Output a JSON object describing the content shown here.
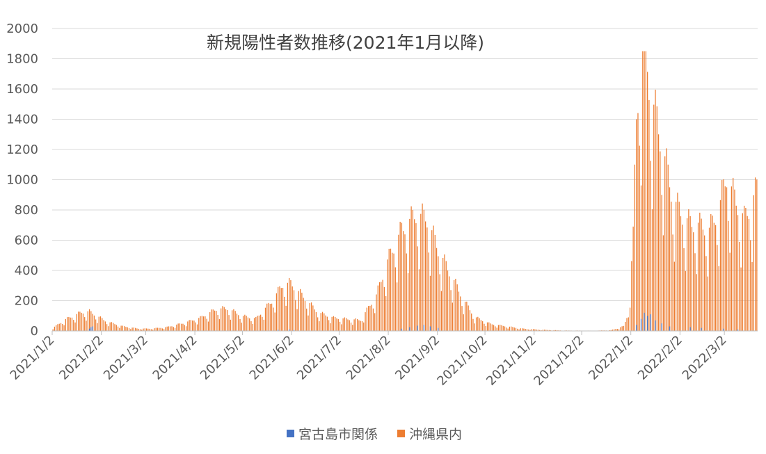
{
  "chart_data": {
    "type": "bar",
    "title": "新規陽性者数推移(2021年1月以降)",
    "xlabel": "",
    "ylabel": "",
    "ylim": [
      0,
      2000
    ],
    "yticks": [
      0,
      200,
      400,
      600,
      800,
      1000,
      1200,
      1400,
      1600,
      1800,
      2000
    ],
    "x_start": "2021/1/2",
    "x_end": "2022/3/22",
    "x_tick_labels": [
      "2021/1/2",
      "2021/2/2",
      "2021/3/2",
      "2021/4/2",
      "2021/5/2",
      "2021/6/2",
      "2021/7/2",
      "2021/8/2",
      "2021/9/2",
      "2021/10/2",
      "2021/11/2",
      "2021/12/2",
      "2022/1/2",
      "2022/2/2",
      "2022/3/2"
    ],
    "grid": true,
    "legend_position": "bottom",
    "series": [
      {
        "name": "宮古島市関係",
        "color": "#4472C4",
        "points": [
          [
            "2021/1/25",
            15
          ],
          [
            "2021/1/26",
            25
          ],
          [
            "2021/1/27",
            30
          ],
          [
            "2021/5/24",
            8
          ],
          [
            "2021/5/31",
            10
          ],
          [
            "2021/6/3",
            6
          ],
          [
            "2021/8/10",
            15
          ],
          [
            "2021/8/15",
            25
          ],
          [
            "2021/8/20",
            35
          ],
          [
            "2021/8/24",
            40
          ],
          [
            "2021/8/28",
            30
          ],
          [
            "2021/9/2",
            20
          ],
          [
            "2022/1/5",
            40
          ],
          [
            "2022/1/8",
            80
          ],
          [
            "2022/1/10",
            120
          ],
          [
            "2022/1/12",
            100
          ],
          [
            "2022/1/14",
            110
          ],
          [
            "2022/1/17",
            70
          ],
          [
            "2022/1/21",
            50
          ],
          [
            "2022/1/26",
            30
          ],
          [
            "2022/2/8",
            25
          ],
          [
            "2022/2/15",
            20
          ],
          [
            "2022/3/1",
            15
          ],
          [
            "2022/3/10",
            10
          ]
        ]
      },
      {
        "name": "沖縄県内",
        "color": "#ED7D31",
        "anchors": [
          [
            "2021/1/2",
            20
          ],
          [
            "2021/1/10",
            75
          ],
          [
            "2021/1/20",
            120
          ],
          [
            "2021/1/25",
            125
          ],
          [
            "2021/2/5",
            60
          ],
          [
            "2021/2/15",
            30
          ],
          [
            "2021/2/25",
            15
          ],
          [
            "2021/3/5",
            15
          ],
          [
            "2021/3/15",
            25
          ],
          [
            "2021/3/25",
            50
          ],
          [
            "2021/4/5",
            85
          ],
          [
            "2021/4/15",
            140
          ],
          [
            "2021/4/22",
            145
          ],
          [
            "2021/5/2",
            95
          ],
          [
            "2021/5/10",
            80
          ],
          [
            "2021/5/20",
            190
          ],
          [
            "2021/5/27",
            300
          ],
          [
            "2021/6/1",
            305
          ],
          [
            "2021/6/8",
            230
          ],
          [
            "2021/6/18",
            120
          ],
          [
            "2021/6/28",
            85
          ],
          [
            "2021/7/8",
            75
          ],
          [
            "2021/7/15",
            70
          ],
          [
            "2021/7/25",
            230
          ],
          [
            "2021/8/1",
            450
          ],
          [
            "2021/8/10",
            650
          ],
          [
            "2021/8/19",
            750
          ],
          [
            "2021/8/26",
            720
          ],
          [
            "2021/9/2",
            520
          ],
          [
            "2021/9/10",
            360
          ],
          [
            "2021/9/18",
            200
          ],
          [
            "2021/9/25",
            90
          ],
          [
            "2021/10/5",
            45
          ],
          [
            "2021/10/15",
            30
          ],
          [
            "2021/10/25",
            15
          ],
          [
            "2021/11/5",
            8
          ],
          [
            "2021/11/20",
            3
          ],
          [
            "2021/12/10",
            2
          ],
          [
            "2021/12/20",
            5
          ],
          [
            "2021/12/28",
            30
          ],
          [
            "2021/12/31",
            120
          ],
          [
            "2022/1/3",
            600
          ],
          [
            "2022/1/5",
            1400
          ],
          [
            "2022/1/8",
            1750
          ],
          [
            "2022/1/11",
            1820
          ],
          [
            "2022/1/14",
            1500
          ],
          [
            "2022/1/18",
            1350
          ],
          [
            "2022/1/23",
            1100
          ],
          [
            "2022/1/28",
            850
          ],
          [
            "2022/2/3",
            740
          ],
          [
            "2022/2/8",
            690
          ],
          [
            "2022/2/14",
            680
          ],
          [
            "2022/2/20",
            650
          ],
          [
            "2022/2/26",
            780
          ],
          [
            "2022/3/3",
            1000
          ],
          [
            "2022/3/8",
            850
          ],
          [
            "2022/3/14",
            720
          ],
          [
            "2022/3/18",
            800
          ],
          [
            "2022/3/22",
            910
          ]
        ]
      }
    ]
  }
}
